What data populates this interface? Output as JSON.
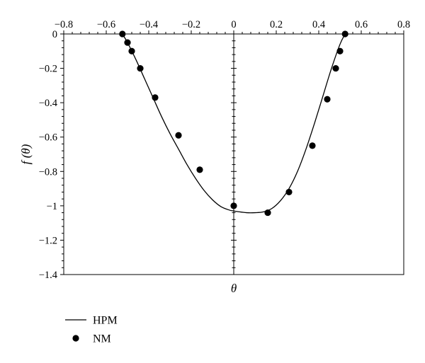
{
  "chart_data": {
    "type": "line",
    "title": "",
    "xlabel": "θ",
    "ylabel": "f (θ)",
    "xlim": [
      -0.8,
      0.8
    ],
    "ylim": [
      -1.4,
      0
    ],
    "x_ticks": [
      -0.8,
      -0.6,
      -0.4,
      -0.2,
      0,
      0.2,
      0.4,
      0.6,
      0.8
    ],
    "x_tick_labels": [
      "−0.8",
      "−0.6",
      "−0.4",
      "−0.2",
      "0",
      "0.2",
      "0.4",
      "0.6",
      "0.8"
    ],
    "y_ticks": [
      0,
      -0.2,
      -0.4,
      -0.6,
      -0.8,
      -1,
      -1.2,
      -1.4
    ],
    "y_tick_labels": [
      "0",
      "−0.2",
      "−0.4",
      "−0.6",
      "−0.8",
      "−1",
      "−1.2",
      "−1.4"
    ],
    "grid": false,
    "legend_position": "bottom-left",
    "series": [
      {
        "name": "HPM",
        "style": "line",
        "color": "#000000",
        "x": [
          -0.524,
          -0.5,
          -0.46,
          -0.42,
          -0.38,
          -0.34,
          -0.3,
          -0.26,
          -0.22,
          -0.18,
          -0.14,
          -0.1,
          -0.06,
          -0.02,
          0.0,
          0.02,
          0.06,
          0.1,
          0.14,
          0.18,
          0.22,
          0.26,
          0.3,
          0.34,
          0.38,
          0.42,
          0.46,
          0.5,
          0.524
        ],
        "y": [
          0.0,
          -0.05,
          -0.15,
          -0.26,
          -0.37,
          -0.48,
          -0.58,
          -0.67,
          -0.76,
          -0.84,
          -0.91,
          -0.965,
          -1.005,
          -1.025,
          -1.03,
          -1.034,
          -1.04,
          -1.04,
          -1.035,
          -1.015,
          -0.97,
          -0.9,
          -0.8,
          -0.67,
          -0.52,
          -0.36,
          -0.2,
          -0.06,
          0.0
        ]
      },
      {
        "name": "NM",
        "style": "scatter",
        "color": "#000000",
        "x": [
          -0.524,
          -0.5,
          -0.48,
          -0.44,
          -0.37,
          -0.26,
          -0.16,
          0.0,
          0.16,
          0.26,
          0.37,
          0.44,
          0.48,
          0.5,
          0.524
        ],
        "y": [
          0.0,
          -0.05,
          -0.1,
          -0.2,
          -0.37,
          -0.59,
          -0.79,
          -1.0,
          -1.04,
          -0.92,
          -0.65,
          -0.38,
          -0.2,
          -0.1,
          0.0
        ]
      }
    ]
  }
}
